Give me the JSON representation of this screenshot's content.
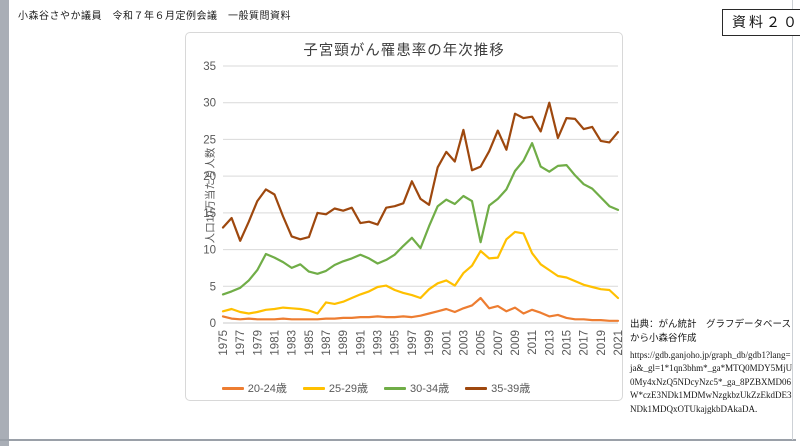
{
  "page": {
    "header_left": "小森谷さやか議員　令和７年６月定例会議　一般質問資料",
    "doc_label": "資料２０"
  },
  "source_note": {
    "line1": "出典：がん統計　グラフデータベースから小森谷作成",
    "url": "https://gdb.ganjoho.jp/graph_db/gdb1?lang=ja&_gl=1*1qn3bhm*_ga*MTQ0MDY5MjU0My4xNzQ5NDcyNzc5*_ga_8PZBXMD06W*czE3NDk1MDMwNzgkbzUkZzEkdDE3NDk1MDQxOTUkajgkbDAkaDA."
  },
  "chart_data": {
    "type": "line",
    "title": "子宮頸がん罹患率の年次推移",
    "xlabel": "",
    "ylabel": "人口10万当たり人数",
    "ylim": [
      0,
      35
    ],
    "ytick_step": 5,
    "grid": true,
    "legend_position": "bottom",
    "x": [
      1975,
      1976,
      1977,
      1978,
      1979,
      1980,
      1981,
      1982,
      1983,
      1984,
      1985,
      1986,
      1987,
      1988,
      1989,
      1990,
      1991,
      1992,
      1993,
      1994,
      1995,
      1996,
      1997,
      1998,
      1999,
      2000,
      2001,
      2002,
      2003,
      2004,
      2005,
      2006,
      2007,
      2008,
      2009,
      2010,
      2011,
      2012,
      2013,
      2014,
      2015,
      2016,
      2017,
      2018,
      2019,
      2020,
      2021
    ],
    "xtick_labels": [
      1975,
      1977,
      1979,
      1981,
      1983,
      1985,
      1987,
      1989,
      1991,
      1993,
      1995,
      1997,
      1999,
      2001,
      2003,
      2005,
      2007,
      2009,
      2011,
      2013,
      2015,
      2017,
      2019,
      2021
    ],
    "series": [
      {
        "name": "20-24歳",
        "color": "#ED7D31",
        "values": [
          0.9,
          0.6,
          0.5,
          0.6,
          0.5,
          0.5,
          0.5,
          0.6,
          0.5,
          0.5,
          0.5,
          0.5,
          0.6,
          0.6,
          0.7,
          0.7,
          0.8,
          0.8,
          0.9,
          0.8,
          0.8,
          0.9,
          0.8,
          1.0,
          1.3,
          1.6,
          1.9,
          1.5,
          2.0,
          2.4,
          3.4,
          2.0,
          2.3,
          1.6,
          2.1,
          1.3,
          1.8,
          1.4,
          0.9,
          1.1,
          0.7,
          0.5,
          0.5,
          0.4,
          0.4,
          0.3,
          0.3
        ]
      },
      {
        "name": "25-29歳",
        "color": "#FFC000",
        "values": [
          1.6,
          1.9,
          1.5,
          1.3,
          1.5,
          1.8,
          1.9,
          2.1,
          2.0,
          1.9,
          1.7,
          1.3,
          2.8,
          2.6,
          2.9,
          3.4,
          3.9,
          4.3,
          4.9,
          5.1,
          4.5,
          4.1,
          3.8,
          3.4,
          4.6,
          5.4,
          5.8,
          5.1,
          6.8,
          7.8,
          9.8,
          8.8,
          8.9,
          11.4,
          12.4,
          12.2,
          9.5,
          8.0,
          7.2,
          6.4,
          6.2,
          5.7,
          5.2,
          4.9,
          4.6,
          4.5,
          3.4
        ]
      },
      {
        "name": "30-34歳",
        "color": "#70AD47",
        "values": [
          3.9,
          4.3,
          4.8,
          5.8,
          7.2,
          9.4,
          8.9,
          8.3,
          7.5,
          8.0,
          7.0,
          6.7,
          7.1,
          7.9,
          8.4,
          8.8,
          9.3,
          8.8,
          8.1,
          8.6,
          9.3,
          10.5,
          11.6,
          10.2,
          13.2,
          15.9,
          16.8,
          16.2,
          17.3,
          16.6,
          11.0,
          16.0,
          16.9,
          18.2,
          20.7,
          22.1,
          24.5,
          21.3,
          20.6,
          21.4,
          21.5,
          20.1,
          18.9,
          18.3,
          17.1,
          15.9,
          15.4
        ]
      },
      {
        "name": "35-39歳",
        "color": "#9E480E",
        "values": [
          13.0,
          14.3,
          11.2,
          13.8,
          16.6,
          18.2,
          17.5,
          14.5,
          11.8,
          11.4,
          11.7,
          15.0,
          14.8,
          15.6,
          15.3,
          15.7,
          13.6,
          13.8,
          13.4,
          15.7,
          15.9,
          16.3,
          19.3,
          16.9,
          16.1,
          21.2,
          23.3,
          22.0,
          26.3,
          20.8,
          21.3,
          23.4,
          26.2,
          23.6,
          28.5,
          27.9,
          28.1,
          26.1,
          30.0,
          25.2,
          27.9,
          27.8,
          26.4,
          26.7,
          24.8,
          24.6,
          26.0
        ]
      }
    ]
  }
}
